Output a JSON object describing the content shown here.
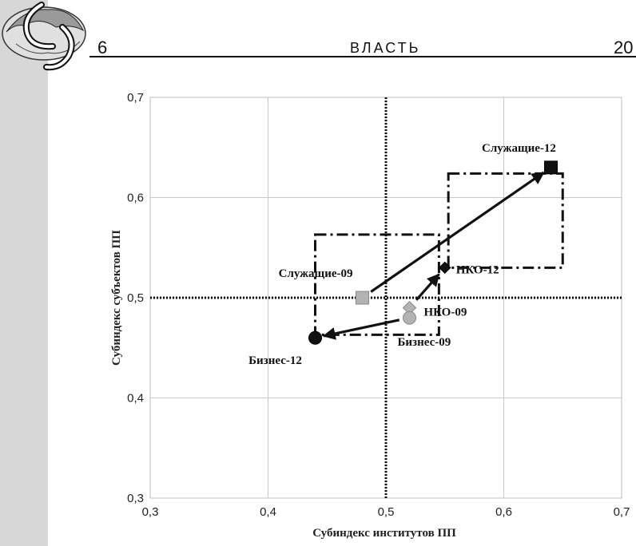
{
  "header": {
    "page_left": "6",
    "running_head": "ВЛАСТЬ",
    "page_right": "20"
  },
  "colors": {
    "frame": "#d7d7d7",
    "grid": "#c8c8c8",
    "dark_marker": "#111111",
    "light_marker": "#b3b3b3"
  },
  "icons": {
    "logo": "globe-emblem-icon"
  },
  "chart_data": {
    "type": "scatter",
    "xlabel": "Субиндекс институтов ПП",
    "ylabel": "Субиндекс субъектов ПП",
    "xlim": [
      0.3,
      0.7
    ],
    "ylim": [
      0.3,
      0.7
    ],
    "x_ticks": [
      "0,3",
      "0,4",
      "0,5",
      "0,6",
      "0,7"
    ],
    "y_ticks": [
      "0,3",
      "0,4",
      "0,5",
      "0,6",
      "0,7"
    ],
    "grid": true,
    "reference_lines": {
      "x": 0.5,
      "y": 0.5
    },
    "points": [
      {
        "label": "Служащие-09",
        "x": 0.48,
        "y": 0.5,
        "marker": "square",
        "shade": "light"
      },
      {
        "label": "Служащие-12",
        "x": 0.64,
        "y": 0.63,
        "marker": "square",
        "shade": "dark"
      },
      {
        "label": "НКО-09",
        "x": 0.52,
        "y": 0.49,
        "marker": "diamond",
        "shade": "light"
      },
      {
        "label": "НКО-12",
        "x": 0.55,
        "y": 0.53,
        "marker": "diamond",
        "shade": "dark"
      },
      {
        "label": "Бизнес-09",
        "x": 0.52,
        "y": 0.48,
        "marker": "circle",
        "shade": "light"
      },
      {
        "label": "Бизнес-12",
        "x": 0.44,
        "y": 0.46,
        "marker": "circle",
        "shade": "dark"
      }
    ],
    "arrows": [
      {
        "from": "Служащие-09",
        "to": "Служащие-12"
      },
      {
        "from": "НКО-09",
        "to": "НКО-12"
      },
      {
        "from": "Бизнес-09",
        "to": "Бизнес-12"
      }
    ],
    "boxes": [
      {
        "x": [
          0.44,
          0.545
        ],
        "y": [
          0.463,
          0.563
        ]
      },
      {
        "x": [
          0.553,
          0.65
        ],
        "y": [
          0.53,
          0.624
        ]
      }
    ]
  }
}
